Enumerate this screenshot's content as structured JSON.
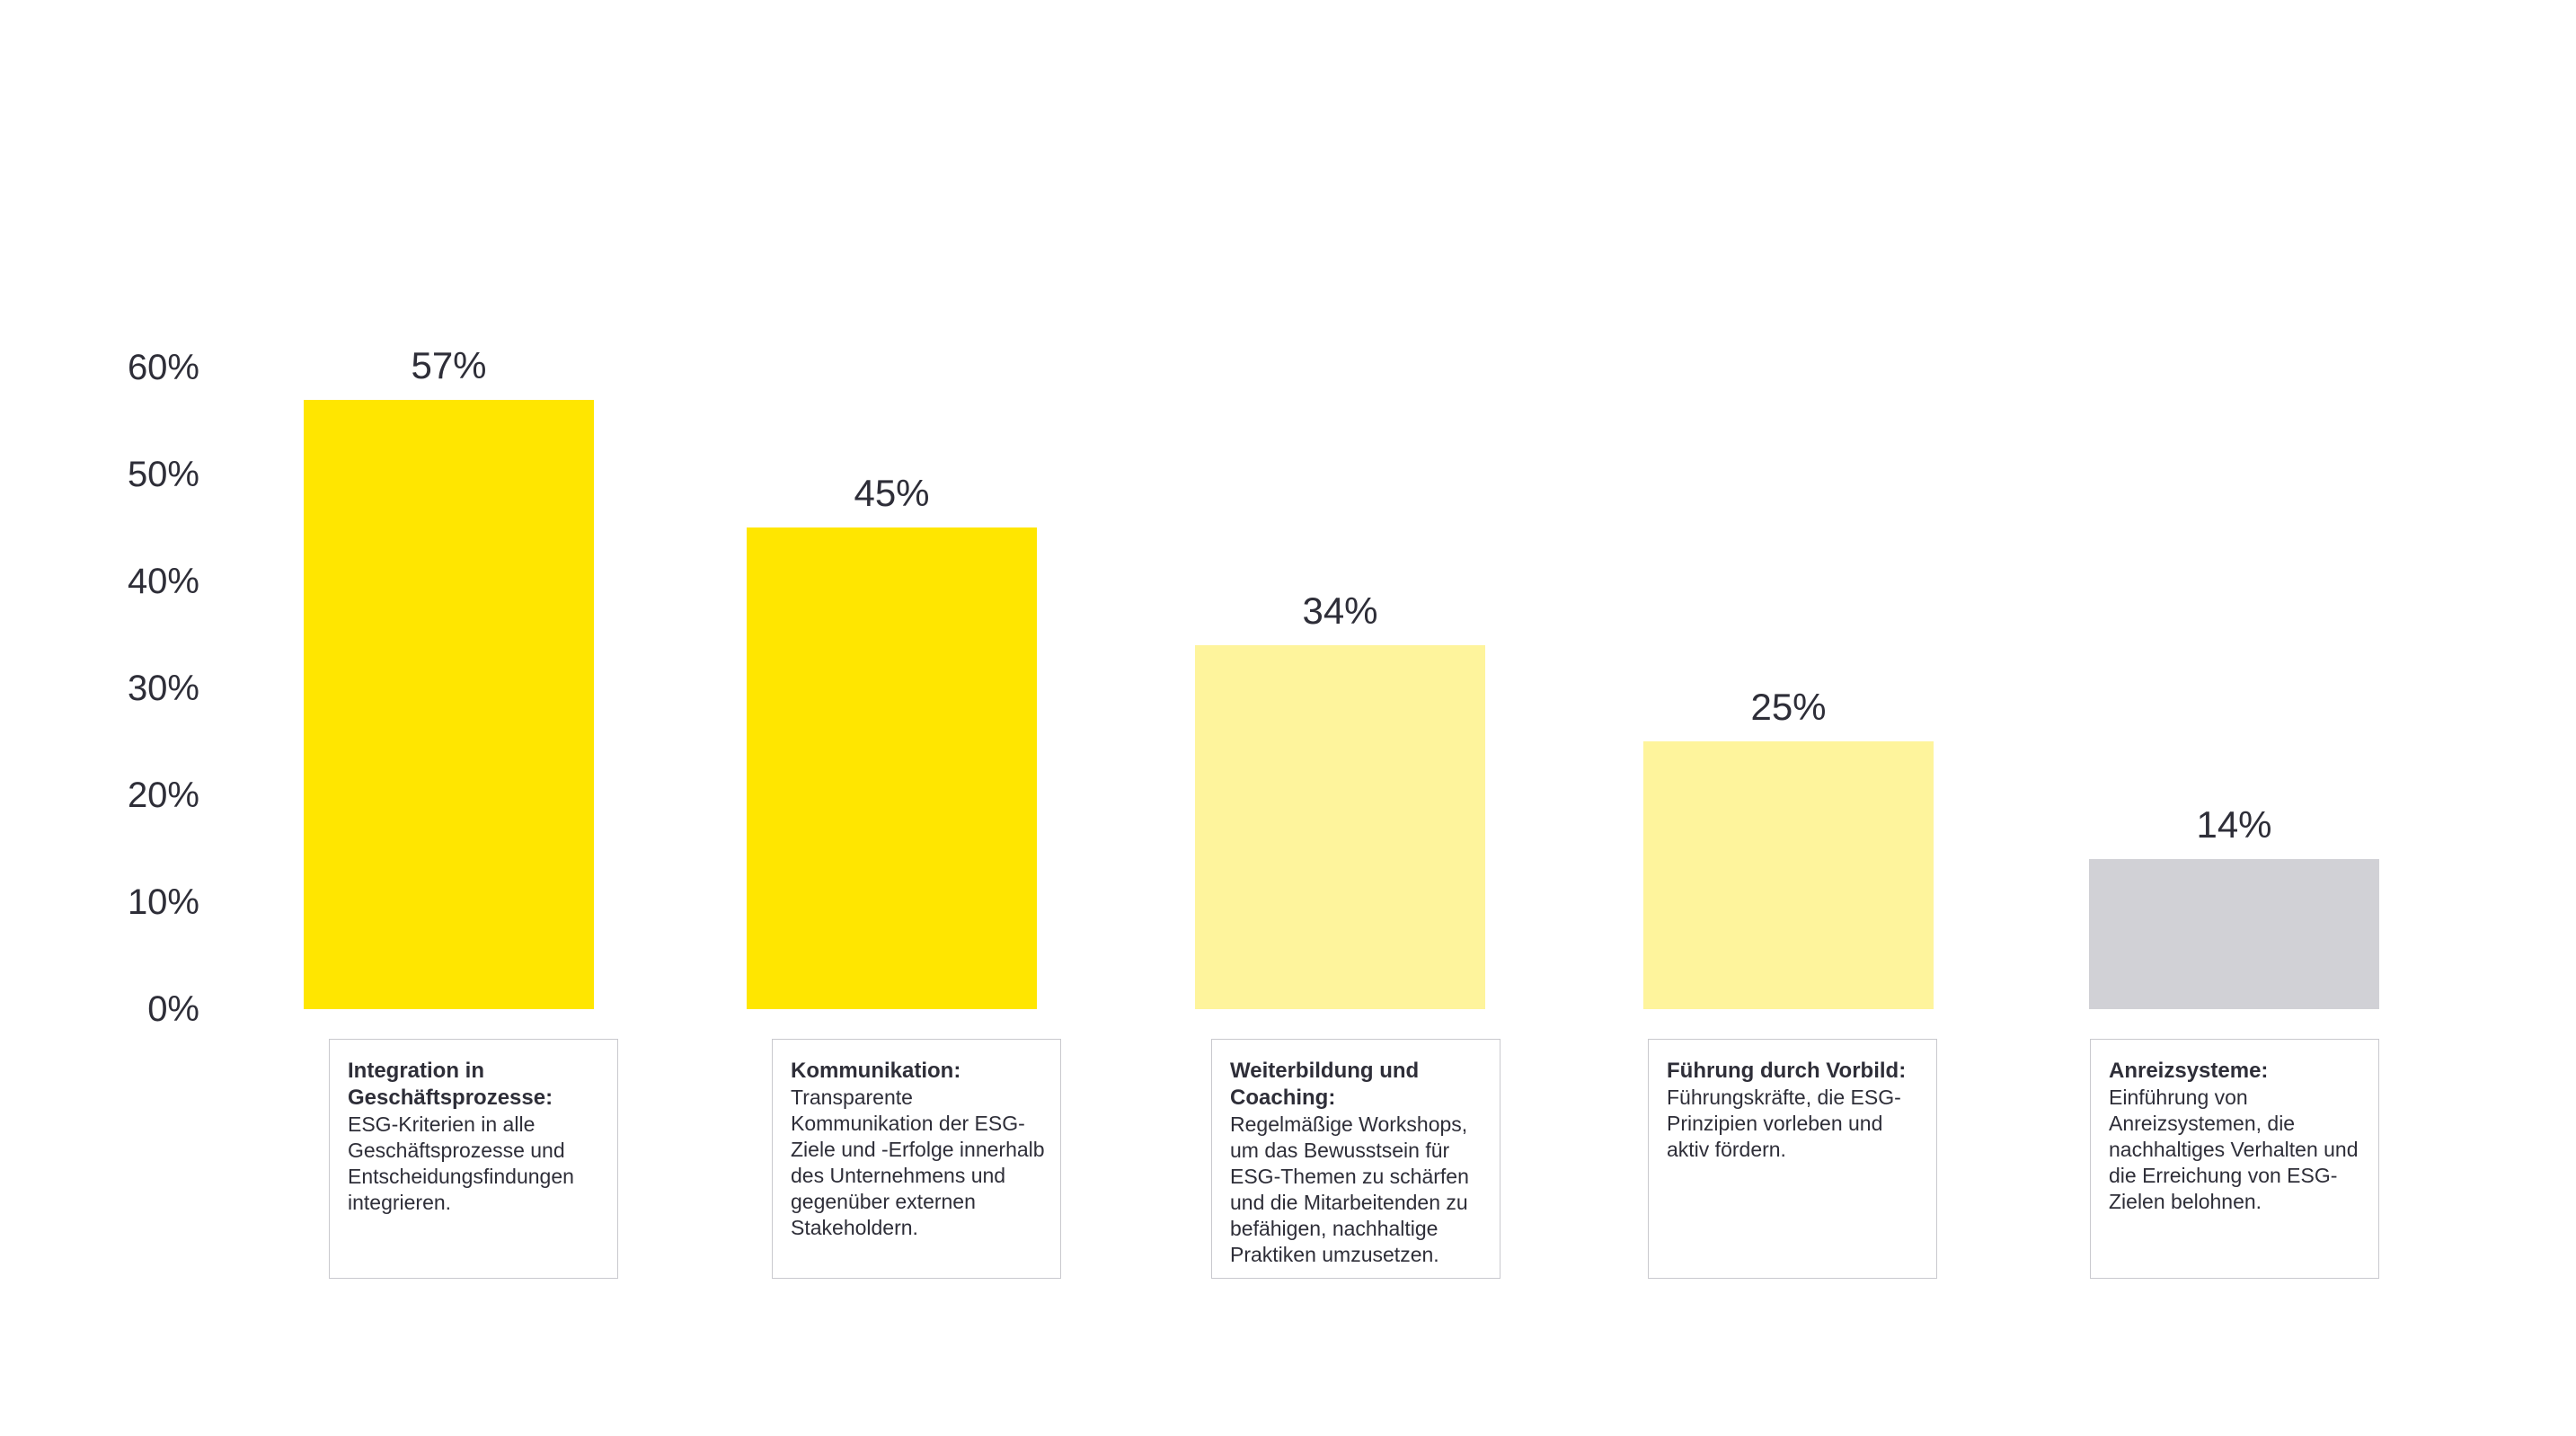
{
  "chart_data": {
    "type": "bar",
    "title": "",
    "unit": "%",
    "ylim": [
      0,
      60
    ],
    "yticks": [
      0,
      10,
      20,
      30,
      40,
      50,
      60
    ],
    "ytick_labels": [
      "0%",
      "10%",
      "20%",
      "30%",
      "40%",
      "50%",
      "60%"
    ],
    "grid": false,
    "legend": false,
    "axis_lines": false,
    "categories": [
      "Integration in Geschäftsprozesse",
      "Kommunikation",
      "Weiterbildung und Coaching",
      "Führung durch Vorbild",
      "Anreizsysteme"
    ],
    "values": [
      57,
      45,
      34,
      25,
      14
    ],
    "value_labels": [
      "57%",
      "45%",
      "34%",
      "25%",
      "14%"
    ],
    "bar_colors": [
      "#FFE600",
      "#FFE600",
      "#FEF49C",
      "#FEF49C",
      "#D1D1D6"
    ],
    "annotations": [
      {
        "title": "Integration in Geschäftsprozesse:",
        "description": "ESG-Kriterien in alle Geschäftsprozesse und Entscheidungsfindungen integrieren."
      },
      {
        "title": "Kommunikation:",
        "description": "Transparente Kommunikation der ESG-Ziele und -Erfolge innerhalb des Unternehmens und gegenüber externen Stakeholdern."
      },
      {
        "title": "Weiterbildung und Coaching:",
        "description": "Regelmäßige Workshops, um das Bewusstsein für ESG-Themen zu schärfen und die Mitarbeitenden zu befähigen, nachhaltige Praktiken umzusetzen."
      },
      {
        "title": "Führung durch Vorbild:",
        "description": "Führungskräfte, die ESG-Prinzipien vorleben und aktiv fördern."
      },
      {
        "title": "Anreizsysteme:",
        "description": "Einführung von Anreizsystemen, die nachhaltiges Verhalten und die Erreichung von ESG-Zielen belohnen."
      }
    ],
    "colors": {
      "accent_yellow": "#FFE600",
      "pale_yellow": "#FEF49C",
      "gray": "#D1D1D6",
      "text": "#2E2E38",
      "card_border": "#C9C9CE",
      "background": "#FFFFFF"
    }
  }
}
